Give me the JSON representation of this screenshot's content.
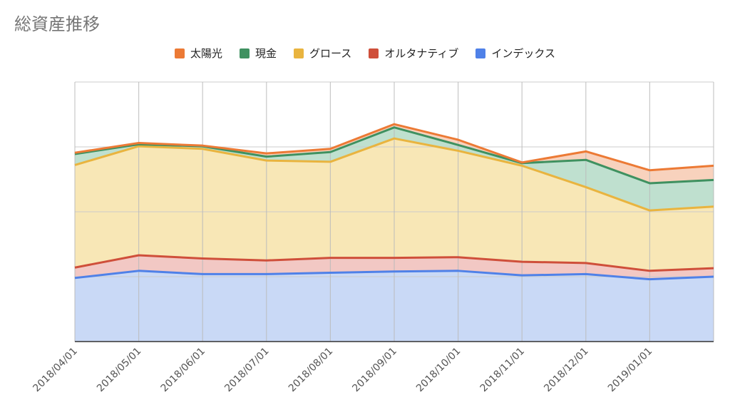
{
  "chart_data": {
    "type": "area",
    "stacked": true,
    "title": "総資産推移",
    "xlabel": "",
    "ylabel": "",
    "y_tick_labels_shown": false,
    "grid": true,
    "legend_position": "top",
    "ylim": [
      0,
      400
    ],
    "categories": [
      "2018/04/01",
      "2018/05/01",
      "2018/06/01",
      "2018/07/01",
      "2018/08/01",
      "2018/09/01",
      "2018/10/01",
      "2018/11/01",
      "2018/12/01",
      "2019/01/01",
      ""
    ],
    "series": [
      {
        "name": "インデックス",
        "color": "#4f81e8",
        "fill": "#c9d9f6",
        "values": [
          98,
          109,
          104,
          104,
          106,
          108,
          109,
          102,
          104,
          96,
          100
        ]
      },
      {
        "name": "オルタナティブ",
        "color": "#cf4f3a",
        "fill": "#f2c8c4",
        "values": [
          16,
          24,
          24,
          21,
          23,
          21,
          21,
          21,
          17,
          13,
          13
        ]
      },
      {
        "name": "グロース",
        "color": "#e9b43f",
        "fill": "#f8e7b6",
        "values": [
          158,
          168,
          169,
          154,
          148,
          184,
          164,
          148,
          117,
          93,
          95
        ]
      },
      {
        "name": "現金",
        "color": "#3f9160",
        "fill": "#bfe0cf",
        "values": [
          17,
          3,
          4,
          6,
          15,
          17,
          9,
          4,
          42,
          42,
          41
        ]
      },
      {
        "name": "太陽光",
        "color": "#ec7a35",
        "fill": "#f8d2bd",
        "values": [
          2,
          2,
          1,
          5,
          5,
          5,
          8,
          1,
          13,
          20,
          22
        ]
      }
    ],
    "legend_order": [
      "太陽光",
      "現金",
      "グロース",
      "オルタナティブ",
      "インデックス"
    ]
  }
}
